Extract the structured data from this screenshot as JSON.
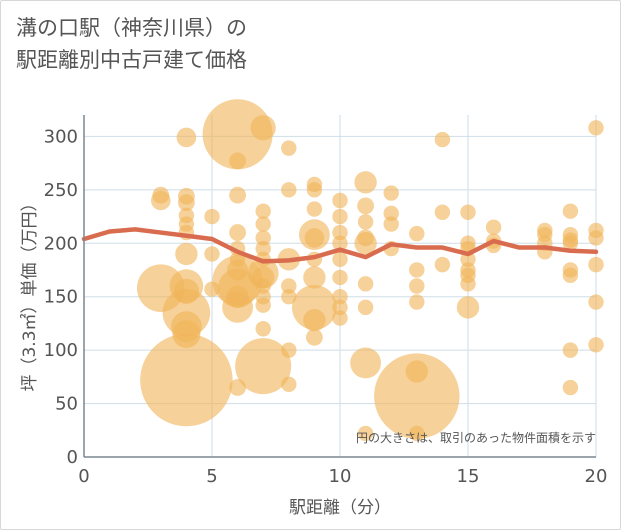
{
  "chart_data": {
    "type": "scatter",
    "title_lines": [
      "溝の口駅（神奈川県）の",
      "駅距離別中古戸建て価格"
    ],
    "xlabel": "駅距離（分）",
    "ylabel": "坪（3.3㎡）単価（万円）",
    "xlim": [
      0,
      20
    ],
    "ylim": [
      0,
      320
    ],
    "xticks": [
      0,
      5,
      10,
      15,
      20
    ],
    "yticks": [
      0,
      50,
      100,
      150,
      200,
      250,
      300
    ],
    "grid": true,
    "note": "円の大きさは、取引のあった物件面積を示す",
    "colors": {
      "bubble": "#f0b55a",
      "line": "#d96c4e",
      "grid": "#cfdde7",
      "axis": "#7b8791"
    },
    "series": [
      {
        "kind": "bubble",
        "points": [
          {
            "x": 3,
            "y": 245,
            "s": 1.2
          },
          {
            "x": 3,
            "y": 240,
            "s": 1.4
          },
          {
            "x": 3,
            "y": 158,
            "s": 3.4
          },
          {
            "x": 4,
            "y": 299,
            "s": 1.4
          },
          {
            "x": 4,
            "y": 244,
            "s": 1.2
          },
          {
            "x": 4,
            "y": 238,
            "s": 1.2
          },
          {
            "x": 4,
            "y": 226,
            "s": 1.1
          },
          {
            "x": 4,
            "y": 218,
            "s": 1.1
          },
          {
            "x": 4,
            "y": 210,
            "s": 1.1
          },
          {
            "x": 4,
            "y": 190,
            "s": 1.6
          },
          {
            "x": 4,
            "y": 160,
            "s": 2.4
          },
          {
            "x": 4,
            "y": 155,
            "s": 1.8
          },
          {
            "x": 4,
            "y": 135,
            "s": 3.4
          },
          {
            "x": 4,
            "y": 122,
            "s": 2.2
          },
          {
            "x": 4,
            "y": 115,
            "s": 2.0
          },
          {
            "x": 4,
            "y": 72,
            "s": 6.6
          },
          {
            "x": 5,
            "y": 225,
            "s": 1.1
          },
          {
            "x": 5,
            "y": 190,
            "s": 1.1
          },
          {
            "x": 5,
            "y": 157,
            "s": 1.1
          },
          {
            "x": 6,
            "y": 302,
            "s": 5.0
          },
          {
            "x": 6,
            "y": 277,
            "s": 1.2
          },
          {
            "x": 6,
            "y": 245,
            "s": 1.2
          },
          {
            "x": 6,
            "y": 210,
            "s": 1.2
          },
          {
            "x": 6,
            "y": 195,
            "s": 1.1
          },
          {
            "x": 6,
            "y": 185,
            "s": 1.1
          },
          {
            "x": 6,
            "y": 175,
            "s": 1.5
          },
          {
            "x": 6,
            "y": 165,
            "s": 3.6
          },
          {
            "x": 6,
            "y": 158,
            "s": 2.8
          },
          {
            "x": 6,
            "y": 150,
            "s": 1.6
          },
          {
            "x": 6,
            "y": 140,
            "s": 2.2
          },
          {
            "x": 6,
            "y": 65,
            "s": 1.2
          },
          {
            "x": 7,
            "y": 308,
            "s": 1.8
          },
          {
            "x": 7,
            "y": 230,
            "s": 1.1
          },
          {
            "x": 7,
            "y": 218,
            "s": 1.1
          },
          {
            "x": 7,
            "y": 205,
            "s": 1.1
          },
          {
            "x": 7,
            "y": 195,
            "s": 1.1
          },
          {
            "x": 7,
            "y": 185,
            "s": 1.1
          },
          {
            "x": 7,
            "y": 172,
            "s": 2.2
          },
          {
            "x": 7,
            "y": 168,
            "s": 1.6
          },
          {
            "x": 7,
            "y": 160,
            "s": 1.1
          },
          {
            "x": 7,
            "y": 150,
            "s": 1.1
          },
          {
            "x": 7,
            "y": 142,
            "s": 1.1
          },
          {
            "x": 7,
            "y": 120,
            "s": 1.1
          },
          {
            "x": 7,
            "y": 85,
            "s": 4.0
          },
          {
            "x": 8,
            "y": 289,
            "s": 1.1
          },
          {
            "x": 8,
            "y": 250,
            "s": 1.1
          },
          {
            "x": 8,
            "y": 185,
            "s": 1.6
          },
          {
            "x": 8,
            "y": 160,
            "s": 1.1
          },
          {
            "x": 8,
            "y": 150,
            "s": 1.1
          },
          {
            "x": 8,
            "y": 100,
            "s": 1.1
          },
          {
            "x": 8,
            "y": 68,
            "s": 1.1
          },
          {
            "x": 9,
            "y": 255,
            "s": 1.1
          },
          {
            "x": 9,
            "y": 250,
            "s": 1.1
          },
          {
            "x": 9,
            "y": 232,
            "s": 1.1
          },
          {
            "x": 9,
            "y": 208,
            "s": 2.2
          },
          {
            "x": 9,
            "y": 205,
            "s": 1.4
          },
          {
            "x": 9,
            "y": 185,
            "s": 1.1
          },
          {
            "x": 9,
            "y": 168,
            "s": 1.6
          },
          {
            "x": 9,
            "y": 140,
            "s": 3.2
          },
          {
            "x": 9,
            "y": 128,
            "s": 1.6
          },
          {
            "x": 9,
            "y": 112,
            "s": 1.2
          },
          {
            "x": 10,
            "y": 240,
            "s": 1.1
          },
          {
            "x": 10,
            "y": 225,
            "s": 1.1
          },
          {
            "x": 10,
            "y": 210,
            "s": 1.1
          },
          {
            "x": 10,
            "y": 200,
            "s": 1.1
          },
          {
            "x": 10,
            "y": 185,
            "s": 1.1
          },
          {
            "x": 10,
            "y": 168,
            "s": 1.1
          },
          {
            "x": 10,
            "y": 150,
            "s": 1.1
          },
          {
            "x": 10,
            "y": 140,
            "s": 1.1
          },
          {
            "x": 10,
            "y": 130,
            "s": 1.1
          },
          {
            "x": 11,
            "y": 257,
            "s": 1.6
          },
          {
            "x": 11,
            "y": 235,
            "s": 1.2
          },
          {
            "x": 11,
            "y": 220,
            "s": 1.1
          },
          {
            "x": 11,
            "y": 205,
            "s": 1.2
          },
          {
            "x": 11,
            "y": 200,
            "s": 1.6
          },
          {
            "x": 11,
            "y": 162,
            "s": 1.1
          },
          {
            "x": 11,
            "y": 140,
            "s": 1.1
          },
          {
            "x": 11,
            "y": 88,
            "s": 2.2
          },
          {
            "x": 11,
            "y": 22,
            "s": 1.1
          },
          {
            "x": 12,
            "y": 247,
            "s": 1.1
          },
          {
            "x": 12,
            "y": 228,
            "s": 1.1
          },
          {
            "x": 12,
            "y": 218,
            "s": 1.1
          },
          {
            "x": 12,
            "y": 195,
            "s": 1.1
          },
          {
            "x": 13,
            "y": 209,
            "s": 1.1
          },
          {
            "x": 13,
            "y": 175,
            "s": 1.1
          },
          {
            "x": 13,
            "y": 160,
            "s": 1.1
          },
          {
            "x": 13,
            "y": 145,
            "s": 1.1
          },
          {
            "x": 13,
            "y": 80,
            "s": 1.6
          },
          {
            "x": 13,
            "y": 57,
            "s": 6.1
          },
          {
            "x": 13,
            "y": 22,
            "s": 1.1
          },
          {
            "x": 14,
            "y": 297,
            "s": 1.1
          },
          {
            "x": 14,
            "y": 229,
            "s": 1.1
          },
          {
            "x": 14,
            "y": 180,
            "s": 1.1
          },
          {
            "x": 15,
            "y": 229,
            "s": 1.1
          },
          {
            "x": 15,
            "y": 200,
            "s": 1.1
          },
          {
            "x": 15,
            "y": 195,
            "s": 1.1
          },
          {
            "x": 15,
            "y": 185,
            "s": 1.1
          },
          {
            "x": 15,
            "y": 175,
            "s": 1.1
          },
          {
            "x": 15,
            "y": 170,
            "s": 1.1
          },
          {
            "x": 15,
            "y": 162,
            "s": 1.1
          },
          {
            "x": 15,
            "y": 140,
            "s": 1.6
          },
          {
            "x": 16,
            "y": 215,
            "s": 1.1
          },
          {
            "x": 16,
            "y": 202,
            "s": 1.1
          },
          {
            "x": 16,
            "y": 198,
            "s": 1.1
          },
          {
            "x": 18,
            "y": 212,
            "s": 1.1
          },
          {
            "x": 18,
            "y": 208,
            "s": 1.1
          },
          {
            "x": 18,
            "y": 200,
            "s": 1.1
          },
          {
            "x": 18,
            "y": 192,
            "s": 1.1
          },
          {
            "x": 19,
            "y": 230,
            "s": 1.1
          },
          {
            "x": 19,
            "y": 208,
            "s": 1.1
          },
          {
            "x": 19,
            "y": 203,
            "s": 1.1
          },
          {
            "x": 19,
            "y": 200,
            "s": 1.1
          },
          {
            "x": 19,
            "y": 175,
            "s": 1.1
          },
          {
            "x": 19,
            "y": 170,
            "s": 1.1
          },
          {
            "x": 19,
            "y": 100,
            "s": 1.1
          },
          {
            "x": 19,
            "y": 65,
            "s": 1.1
          },
          {
            "x": 20,
            "y": 308,
            "s": 1.1
          },
          {
            "x": 20,
            "y": 212,
            "s": 1.1
          },
          {
            "x": 20,
            "y": 205,
            "s": 1.1
          },
          {
            "x": 20,
            "y": 180,
            "s": 1.1
          },
          {
            "x": 20,
            "y": 145,
            "s": 1.1
          },
          {
            "x": 20,
            "y": 105,
            "s": 1.1
          }
        ]
      },
      {
        "kind": "line",
        "x": [
          0,
          1,
          2,
          3,
          4,
          5,
          6,
          7,
          8,
          9,
          10,
          11,
          12,
          13,
          14,
          15,
          16,
          17,
          18,
          19,
          20
        ],
        "y": [
          204,
          211,
          213,
          210,
          207,
          204,
          192,
          183,
          184,
          187,
          194,
          187,
          199,
          196,
          196,
          190,
          202,
          196,
          196,
          193,
          192
        ]
      }
    ]
  }
}
